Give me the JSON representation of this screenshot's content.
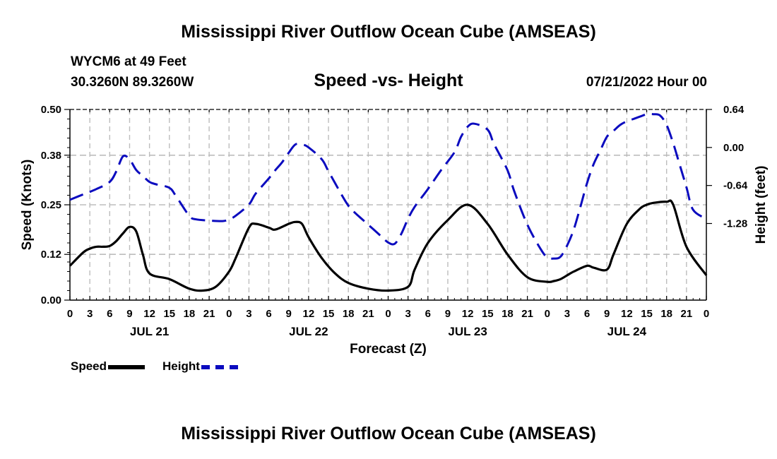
{
  "header": {
    "title": "Mississippi River Outflow Ocean Cube (AMSEAS)",
    "station": "WYCM6 at 49 Feet",
    "coords": "30.3260N  89.3260W",
    "subtitle": "Speed -vs- Height",
    "datetime": "07/21/2022 Hour 00"
  },
  "footer": {
    "title": "Mississippi River Outflow Ocean Cube (AMSEAS)"
  },
  "legend": {
    "speed_label": "Speed",
    "height_label": "Height"
  },
  "colors": {
    "speed": "#000000",
    "height": "#0b0bbf",
    "grid": "#bdbdbd"
  },
  "chart_data": {
    "type": "line",
    "title": "Speed -vs- Height",
    "xlabel": "Forecast (Z)",
    "ylabel_left": "Speed (Knots)",
    "ylabel_right": "Height (feet)",
    "x_range_hours": [
      0,
      96
    ],
    "x_tick_step_hours": 3,
    "x_tick_labels": [
      "0",
      "3",
      "6",
      "9",
      "12",
      "15",
      "18",
      "21",
      "0",
      "3",
      "6",
      "9",
      "12",
      "15",
      "18",
      "21",
      "0",
      "3",
      "6",
      "9",
      "12",
      "15",
      "18",
      "21",
      "0",
      "3",
      "6",
      "9",
      "12",
      "15",
      "18",
      "21",
      "0"
    ],
    "day_labels": [
      {
        "hour": 12,
        "label": "JUL 21"
      },
      {
        "hour": 36,
        "label": "JUL 22"
      },
      {
        "hour": 60,
        "label": "JUL 23"
      },
      {
        "hour": 84,
        "label": "JUL 24"
      }
    ],
    "y_left": {
      "min": 0,
      "max": 0.5,
      "ticks": [
        0.0,
        0.12,
        0.25,
        0.38,
        0.5
      ],
      "tick_labels": [
        "0.00",
        "0.12",
        "0.25",
        "0.38",
        "0.50"
      ]
    },
    "y_right": {
      "min": -2.57,
      "max": 0.64,
      "ticks": [
        0.64,
        0.0,
        -0.64,
        -1.28
      ],
      "tick_labels": [
        "0.64",
        "0.00",
        "-0.64",
        "-1.28"
      ]
    },
    "grid": true,
    "series": [
      {
        "name": "Speed",
        "axis": "left",
        "style": "solid",
        "x": [
          0,
          2,
          3,
          4,
          5,
          6,
          7,
          8,
          9,
          10,
          11,
          12,
          15,
          18,
          20,
          22,
          24,
          25,
          27,
          28,
          30,
          31,
          33,
          34,
          35,
          36,
          38,
          40,
          42,
          45,
          48,
          51,
          52,
          54,
          57,
          60,
          63,
          66,
          69,
          72,
          73,
          74,
          75,
          76,
          78,
          79,
          81,
          82,
          84,
          86,
          87,
          88,
          90,
          91,
          93,
          96
        ],
        "y": [
          0.09,
          0.125,
          0.135,
          0.14,
          0.14,
          0.142,
          0.155,
          0.175,
          0.192,
          0.18,
          0.12,
          0.07,
          0.055,
          0.03,
          0.025,
          0.035,
          0.075,
          0.11,
          0.19,
          0.2,
          0.19,
          0.185,
          0.2,
          0.205,
          0.2,
          0.165,
          0.11,
          0.07,
          0.045,
          0.03,
          0.025,
          0.035,
          0.08,
          0.15,
          0.21,
          0.25,
          0.2,
          0.12,
          0.06,
          0.048,
          0.05,
          0.055,
          0.065,
          0.075,
          0.09,
          0.085,
          0.08,
          0.12,
          0.2,
          0.24,
          0.25,
          0.255,
          0.258,
          0.25,
          0.14,
          0.065
        ]
      },
      {
        "name": "Height",
        "axis": "right",
        "style": "dashed",
        "x": [
          0,
          2,
          4,
          6,
          7,
          8,
          9,
          10,
          11,
          12,
          13,
          15,
          16,
          18,
          19,
          21,
          23,
          24,
          25,
          27,
          28,
          30,
          31,
          32,
          33,
          34,
          35,
          36,
          38,
          39,
          41,
          42,
          43,
          45,
          47,
          48,
          49,
          50,
          51,
          52,
          54,
          56,
          58,
          59,
          60,
          61,
          63,
          64,
          66,
          67,
          69,
          71,
          72,
          73,
          74,
          75,
          76,
          77,
          78,
          79,
          80,
          81,
          82,
          83,
          84,
          85,
          86,
          87,
          88,
          89,
          90,
          91,
          92,
          93,
          94,
          96
        ],
        "y": [
          -0.88,
          -0.79,
          -0.7,
          -0.58,
          -0.4,
          -0.15,
          -0.2,
          -0.38,
          -0.48,
          -0.58,
          -0.62,
          -0.68,
          -0.82,
          -1.15,
          -1.21,
          -1.23,
          -1.24,
          -1.21,
          -1.15,
          -0.96,
          -0.78,
          -0.52,
          -0.38,
          -0.25,
          -0.09,
          0.05,
          0.05,
          0.0,
          -0.2,
          -0.4,
          -0.8,
          -0.98,
          -1.1,
          -1.3,
          -1.5,
          -1.6,
          -1.62,
          -1.45,
          -1.2,
          -1.0,
          -0.7,
          -0.38,
          -0.08,
          0.18,
          0.35,
          0.4,
          0.3,
          0.05,
          -0.38,
          -0.73,
          -1.3,
          -1.71,
          -1.85,
          -1.87,
          -1.84,
          -1.65,
          -1.38,
          -1.0,
          -0.6,
          -0.28,
          -0.05,
          0.18,
          0.28,
          0.38,
          0.44,
          0.48,
          0.52,
          0.56,
          0.56,
          0.54,
          0.38,
          0.07,
          -0.3,
          -0.67,
          -1.05,
          -1.2
        ]
      }
    ]
  }
}
